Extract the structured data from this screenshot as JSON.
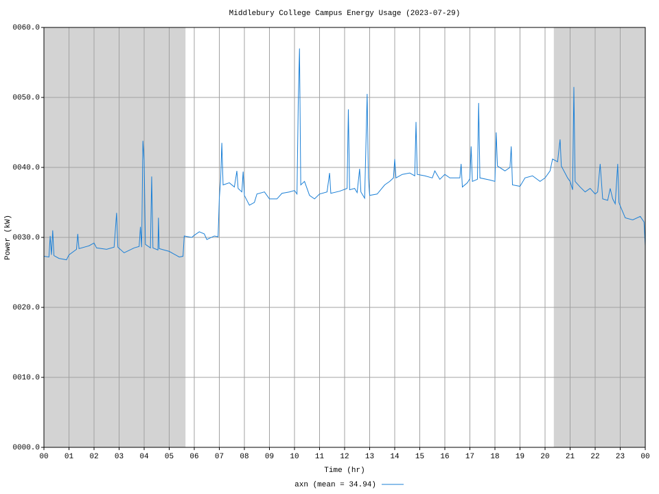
{
  "chart_data": {
    "type": "line",
    "title": "Middlebury College Campus Energy Usage (2023-07-29)",
    "x_label": "Time (hr)",
    "y_label": "Power (kW)",
    "xlim": [
      0,
      24
    ],
    "ylim": [
      0,
      60
    ],
    "xticks": [
      {
        "value": 0,
        "label": "00"
      },
      {
        "value": 1,
        "label": "01"
      },
      {
        "value": 2,
        "label": "02"
      },
      {
        "value": 3,
        "label": "03"
      },
      {
        "value": 4,
        "label": "04"
      },
      {
        "value": 5,
        "label": "05"
      },
      {
        "value": 6,
        "label": "06"
      },
      {
        "value": 7,
        "label": "07"
      },
      {
        "value": 8,
        "label": "08"
      },
      {
        "value": 9,
        "label": "09"
      },
      {
        "value": 10,
        "label": "10"
      },
      {
        "value": 11,
        "label": "11"
      },
      {
        "value": 12,
        "label": "12"
      },
      {
        "value": 13,
        "label": "13"
      },
      {
        "value": 14,
        "label": "14"
      },
      {
        "value": 15,
        "label": "15"
      },
      {
        "value": 16,
        "label": "16"
      },
      {
        "value": 17,
        "label": "17"
      },
      {
        "value": 18,
        "label": "18"
      },
      {
        "value": 19,
        "label": "19"
      },
      {
        "value": 20,
        "label": "20"
      },
      {
        "value": 21,
        "label": "21"
      },
      {
        "value": 22,
        "label": "22"
      },
      {
        "value": 23,
        "label": "23"
      },
      {
        "value": 24,
        "label": "00"
      }
    ],
    "yticks": [
      {
        "value": 0,
        "label": "0000.0"
      },
      {
        "value": 10,
        "label": "0010.0"
      },
      {
        "value": 20,
        "label": "0020.0"
      },
      {
        "value": 30,
        "label": "0030.0"
      },
      {
        "value": 40,
        "label": "0040.0"
      },
      {
        "value": 50,
        "label": "0050.0"
      },
      {
        "value": 60,
        "label": "0060.0"
      }
    ],
    "grid": true,
    "shaded_regions": [
      {
        "start": 0,
        "end": 5.65,
        "color": "#d3d3d3"
      },
      {
        "start": 20.35,
        "end": 24,
        "color": "#d3d3d3"
      }
    ],
    "legend": "bottom",
    "x": [
      0,
      0.2,
      0.25,
      0.3,
      0.35,
      0.4,
      0.6,
      0.9,
      1.0,
      1.3,
      1.35,
      1.4,
      1.8,
      2.0,
      2.1,
      2.5,
      2.8,
      2.9,
      2.95,
      3.2,
      3.6,
      3.8,
      3.85,
      3.9,
      3.95,
      4.0,
      4.05,
      4.25,
      4.3,
      4.35,
      4.55,
      4.57,
      4.6,
      5.0,
      5.4,
      5.55,
      5.6,
      5.9,
      6.0,
      6.2,
      6.4,
      6.5,
      6.8,
      6.95,
      7.0,
      7.05,
      7.1,
      7.15,
      7.4,
      7.6,
      7.7,
      7.75,
      7.9,
      7.95,
      8.0,
      8.2,
      8.4,
      8.5,
      8.8,
      9.0,
      9.3,
      9.5,
      9.8,
      10.0,
      10.1,
      10.15,
      10.2,
      10.25,
      10.4,
      10.6,
      10.8,
      11.0,
      11.3,
      11.4,
      11.45,
      11.8,
      12.1,
      12.15,
      12.2,
      12.4,
      12.5,
      12.6,
      12.65,
      12.8,
      12.9,
      12.95,
      13.0,
      13.3,
      13.6,
      13.8,
      13.95,
      14.0,
      14.05,
      14.3,
      14.6,
      14.8,
      14.85,
      14.9,
      15.2,
      15.5,
      15.6,
      15.8,
      16.0,
      16.2,
      16.6,
      16.65,
      16.7,
      16.9,
      17.0,
      17.05,
      17.1,
      17.3,
      17.35,
      17.4,
      17.8,
      18.0,
      18.05,
      18.1,
      18.4,
      18.6,
      18.65,
      18.7,
      19.0,
      19.2,
      19.5,
      19.8,
      20.0,
      20.2,
      20.3,
      20.5,
      20.6,
      20.65,
      20.9,
      21.0,
      21.1,
      21.15,
      21.2,
      21.4,
      21.6,
      21.8,
      22.0,
      22.1,
      22.2,
      22.3,
      22.5,
      22.6,
      22.7,
      22.8,
      22.9,
      22.95,
      23.0,
      23.2,
      23.5,
      23.8,
      23.95,
      24.0
    ],
    "series": [
      {
        "name": "axn (mean = 34.94)",
        "color": "#1a7fd6",
        "values": [
          27.3,
          27.2,
          30.2,
          27.5,
          31,
          27.4,
          27.0,
          26.8,
          27.5,
          28.3,
          30.5,
          28.4,
          28.8,
          29.2,
          28.5,
          28.3,
          28.6,
          33.5,
          28.6,
          27.8,
          28.5,
          28.7,
          31.5,
          28.6,
          43.8,
          41,
          29,
          28.5,
          38.7,
          28.5,
          28.2,
          32.8,
          28.4,
          28,
          27.2,
          27.3,
          30.2,
          30,
          30.3,
          30.8,
          30.5,
          29.7,
          30.2,
          30.1,
          35.6,
          38,
          43.5,
          37.5,
          37.8,
          37.2,
          39.5,
          37.0,
          36.5,
          39.4,
          36,
          34.6,
          35,
          36.2,
          36.5,
          35.5,
          35.5,
          36.3,
          36.5,
          36.7,
          36.2,
          49.2,
          57,
          37.5,
          38,
          36,
          35.5,
          36.2,
          36.5,
          39.2,
          36.3,
          36.6,
          37,
          48.3,
          36.8,
          37,
          36.4,
          39.8,
          36.5,
          35.6,
          50.5,
          38.5,
          36,
          36.2,
          37.5,
          38,
          38.5,
          41.2,
          38.5,
          39,
          39.2,
          38.8,
          46.5,
          39,
          38.8,
          38.5,
          39.5,
          38.3,
          39,
          38.5,
          38.5,
          40.5,
          37.2,
          37.8,
          38.4,
          43,
          38,
          38.3,
          49.2,
          38.5,
          38.2,
          38,
          45,
          40.2,
          39.5,
          40,
          43,
          37.5,
          37.3,
          38.5,
          38.8,
          38,
          38.5,
          39.5,
          41.2,
          40.8,
          44,
          40.2,
          38.5,
          38,
          36.8,
          51.5,
          38,
          37.2,
          36.5,
          37,
          36.2,
          36.5,
          40.5,
          35.5,
          35.3,
          37,
          35.5,
          34.8,
          40.5,
          35,
          34.5,
          32.8,
          32.5,
          33,
          32.2,
          28.8
        ]
      }
    ]
  }
}
